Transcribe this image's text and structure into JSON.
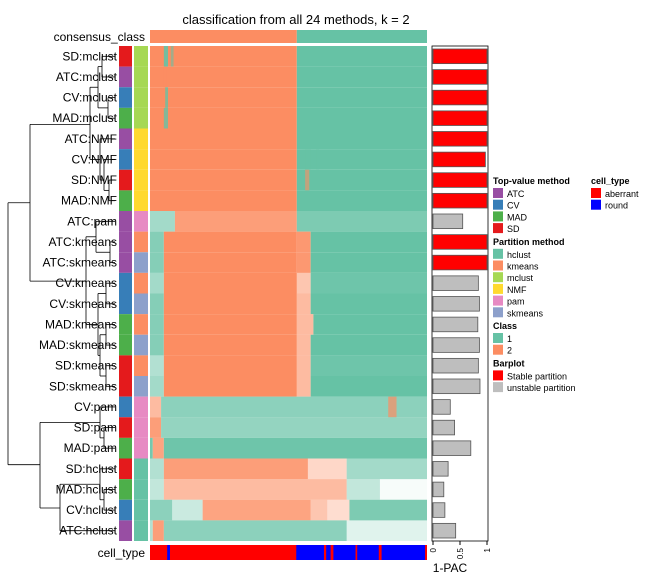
{
  "chart_data": {
    "type": "heatmap",
    "title": "classification from all 24 methods, k = 2",
    "top_annotation_label": "consensus_class",
    "bottom_annotation_label": "cell_type",
    "barplot_label": "1-PAC",
    "barplot_ticks": [
      "0",
      "0.5",
      "1"
    ],
    "barplot_range": [
      0,
      1
    ],
    "column_grid": 100,
    "consensus_class": [
      {
        "from": 0,
        "to": 53,
        "class": 2
      },
      {
        "from": 53,
        "to": 100,
        "class": 1
      }
    ],
    "cell_type": [
      {
        "from": 0,
        "to": 100,
        "type": "aberrant"
      },
      {
        "from": 6.2,
        "to": 7.2,
        "type": "round"
      },
      {
        "from": 52.8,
        "to": 100,
        "type": "round"
      },
      {
        "from": 62.8,
        "to": 63.6,
        "type": "aberrant"
      },
      {
        "from": 65.2,
        "to": 66.2,
        "type": "aberrant"
      },
      {
        "from": 74.2,
        "to": 74.8,
        "type": "aberrant"
      },
      {
        "from": 82.6,
        "to": 83.6,
        "type": "aberrant"
      },
      {
        "from": 99.3,
        "to": 100,
        "type": "aberrant"
      }
    ],
    "rows": [
      {
        "label": "SD:mclust",
        "top": "SD",
        "method": "mclust",
        "pac1": 1.0,
        "stable": true,
        "seg": [
          [
            0,
            53,
            2,
            1
          ],
          [
            5,
            6.5,
            1,
            0.9
          ],
          [
            7.5,
            8.5,
            1,
            0.6
          ],
          [
            53,
            100,
            1,
            1
          ]
        ]
      },
      {
        "label": "ATC:mclust",
        "top": "ATC",
        "method": "mclust",
        "pac1": 1.0,
        "stable": true,
        "seg": [
          [
            0,
            53,
            2,
            1
          ],
          [
            5,
            6,
            2,
            0.5
          ],
          [
            53,
            100,
            1,
            1
          ]
        ]
      },
      {
        "label": "CV:mclust",
        "top": "CV",
        "method": "mclust",
        "pac1": 1.0,
        "stable": true,
        "seg": [
          [
            0,
            53,
            2,
            1
          ],
          [
            5.5,
            6.5,
            1,
            0.8
          ],
          [
            53,
            100,
            1,
            1
          ]
        ]
      },
      {
        "label": "MAD:mclust",
        "top": "MAD",
        "method": "mclust",
        "pac1": 1.0,
        "stable": true,
        "seg": [
          [
            0,
            53,
            2,
            1
          ],
          [
            5,
            6.5,
            1,
            0.8
          ],
          [
            53,
            100,
            1,
            1
          ]
        ]
      },
      {
        "label": "ATC:NMF",
        "top": "ATC",
        "method": "NMF",
        "pac1": 1.0,
        "stable": true,
        "seg": [
          [
            0,
            53,
            2,
            1
          ],
          [
            53,
            100,
            1,
            1
          ],
          [
            55,
            56,
            1,
            0.3
          ]
        ]
      },
      {
        "label": "CV:NMF",
        "top": "CV",
        "method": "NMF",
        "pac1": 0.97,
        "stable": true,
        "seg": [
          [
            0,
            53,
            2,
            1
          ],
          [
            53,
            100,
            1,
            1
          ],
          [
            56,
            58,
            1,
            0.4
          ],
          [
            60,
            61,
            1,
            0.4
          ]
        ]
      },
      {
        "label": "SD:NMF",
        "top": "SD",
        "method": "NMF",
        "pac1": 1.0,
        "stable": true,
        "seg": [
          [
            0,
            53,
            2,
            1
          ],
          [
            53,
            100,
            1,
            1
          ],
          [
            56,
            57.5,
            2,
            0.6
          ]
        ]
      },
      {
        "label": "MAD:NMF",
        "top": "MAD",
        "method": "NMF",
        "pac1": 1.0,
        "stable": true,
        "seg": [
          [
            0,
            53,
            2,
            1
          ],
          [
            53,
            100,
            1,
            1
          ]
        ]
      },
      {
        "label": "ATC:pam",
        "top": "ATC",
        "method": "pam",
        "pac1": 0.55,
        "stable": false,
        "seg": [
          [
            0,
            9,
            1,
            0.6
          ],
          [
            9,
            53,
            2,
            0.85
          ],
          [
            53,
            100,
            1,
            0.85
          ]
        ]
      },
      {
        "label": "ATC:kmeans",
        "top": "ATC",
        "method": "kmeans",
        "pac1": 1.0,
        "stable": true,
        "seg": [
          [
            0,
            5,
            1,
            0.8
          ],
          [
            5,
            53,
            2,
            1
          ],
          [
            53,
            58,
            2,
            0.9
          ],
          [
            58,
            100,
            1,
            1
          ]
        ]
      },
      {
        "label": "ATC:skmeans",
        "top": "ATC",
        "method": "skmeans",
        "pac1": 1.0,
        "stable": true,
        "seg": [
          [
            0,
            5,
            1,
            0.8
          ],
          [
            5,
            53,
            2,
            1
          ],
          [
            53,
            58,
            2,
            0.9
          ],
          [
            58,
            100,
            1,
            1
          ]
        ]
      },
      {
        "label": "CV:kmeans",
        "top": "CV",
        "method": "kmeans",
        "pac1": 0.84,
        "stable": false,
        "seg": [
          [
            0,
            5,
            1,
            0.6
          ],
          [
            5,
            53,
            2,
            1
          ],
          [
            53,
            58,
            2,
            0.5
          ],
          [
            58,
            100,
            1,
            0.95
          ]
        ]
      },
      {
        "label": "CV:skmeans",
        "top": "CV",
        "method": "skmeans",
        "pac1": 0.86,
        "stable": false,
        "seg": [
          [
            0,
            5,
            1,
            0.8
          ],
          [
            5,
            53,
            2,
            1
          ],
          [
            53,
            58,
            2,
            0.6
          ],
          [
            58,
            100,
            1,
            1
          ]
        ]
      },
      {
        "label": "MAD:kmeans",
        "top": "MAD",
        "method": "kmeans",
        "pac1": 0.83,
        "stable": false,
        "seg": [
          [
            0,
            5,
            1,
            0.8
          ],
          [
            5,
            53,
            2,
            1
          ],
          [
            53,
            59,
            2,
            0.6
          ],
          [
            59,
            100,
            1,
            1
          ]
        ]
      },
      {
        "label": "MAD:skmeans",
        "top": "MAD",
        "method": "skmeans",
        "pac1": 0.86,
        "stable": false,
        "seg": [
          [
            0,
            5,
            1,
            0.8
          ],
          [
            5,
            53,
            2,
            1
          ],
          [
            53,
            58,
            2,
            0.6
          ],
          [
            58,
            100,
            1,
            1
          ]
        ]
      },
      {
        "label": "SD:kmeans",
        "top": "SD",
        "method": "kmeans",
        "pac1": 0.84,
        "stable": false,
        "seg": [
          [
            0,
            5,
            1,
            0.5
          ],
          [
            5,
            53,
            2,
            1
          ],
          [
            53,
            58,
            2,
            0.6
          ],
          [
            58,
            100,
            1,
            0.95
          ]
        ]
      },
      {
        "label": "SD:skmeans",
        "top": "SD",
        "method": "skmeans",
        "pac1": 0.87,
        "stable": false,
        "seg": [
          [
            0,
            5,
            1,
            0.6
          ],
          [
            5,
            53,
            2,
            1
          ],
          [
            53,
            58,
            2,
            0.6
          ],
          [
            58,
            100,
            1,
            1
          ]
        ]
      },
      {
        "label": "CV:pam",
        "top": "CV",
        "method": "pam",
        "pac1": 0.32,
        "stable": false,
        "seg": [
          [
            0,
            4,
            2,
            0.6
          ],
          [
            4,
            100,
            1,
            0.75
          ],
          [
            86,
            89,
            2,
            0.7
          ]
        ]
      },
      {
        "label": "SD:pam",
        "top": "SD",
        "method": "pam",
        "pac1": 0.4,
        "stable": false,
        "seg": [
          [
            0,
            4,
            2,
            0.85
          ],
          [
            4,
            100,
            1,
            0.7
          ]
        ]
      },
      {
        "label": "MAD:pam",
        "top": "MAD",
        "method": "pam",
        "pac1": 0.7,
        "stable": false,
        "seg": [
          [
            0,
            1,
            1,
            0.9
          ],
          [
            1,
            5,
            2,
            0.8
          ],
          [
            5,
            100,
            1,
            0.95
          ]
        ]
      },
      {
        "label": "SD:hclust",
        "top": "SD",
        "method": "hclust",
        "pac1": 0.28,
        "stable": false,
        "seg": [
          [
            0,
            5,
            1,
            0.5
          ],
          [
            5,
            57,
            2,
            0.85
          ],
          [
            57,
            71,
            2,
            0.35
          ],
          [
            71,
            100,
            1,
            0.6
          ]
        ]
      },
      {
        "label": "MAD:hclust",
        "top": "MAD",
        "method": "hclust",
        "pac1": 0.2,
        "stable": false,
        "seg": [
          [
            0,
            5,
            1,
            0.4
          ],
          [
            5,
            71,
            2,
            0.6
          ],
          [
            71,
            83,
            1,
            0.4
          ],
          [
            83,
            100,
            1,
            0.05
          ]
        ]
      },
      {
        "label": "CV:hclust",
        "top": "CV",
        "method": "hclust",
        "pac1": 0.22,
        "stable": false,
        "seg": [
          [
            0,
            8,
            1,
            0.75
          ],
          [
            8,
            19,
            1,
            0.35
          ],
          [
            19,
            58,
            2,
            0.8
          ],
          [
            58,
            64,
            2,
            0.5
          ],
          [
            64,
            72,
            2,
            0.3
          ],
          [
            72,
            100,
            1,
            0.85
          ]
        ]
      },
      {
        "label": "ATC:hclust",
        "top": "ATC",
        "method": "hclust",
        "pac1": 0.42,
        "stable": false,
        "seg": [
          [
            0,
            1,
            1,
            0.5
          ],
          [
            1,
            5,
            2,
            0.85
          ],
          [
            5,
            71,
            1,
            0.75
          ],
          [
            71,
            100,
            1,
            0.2
          ]
        ]
      }
    ]
  },
  "legend": {
    "top_value": {
      "title": "Top-value method",
      "items": [
        {
          "label": "ATC",
          "color": "#984EA3"
        },
        {
          "label": "CV",
          "color": "#377EB8"
        },
        {
          "label": "MAD",
          "color": "#4DAF4A"
        },
        {
          "label": "SD",
          "color": "#E41A1C"
        }
      ]
    },
    "partition": {
      "title": "Partition method",
      "items": [
        {
          "label": "hclust",
          "color": "#66C2A5"
        },
        {
          "label": "kmeans",
          "color": "#FC8D62"
        },
        {
          "label": "mclust",
          "color": "#A6D854"
        },
        {
          "label": "NMF",
          "color": "#FFD92F"
        },
        {
          "label": "pam",
          "color": "#E78AC3"
        },
        {
          "label": "skmeans",
          "color": "#8DA0CB"
        }
      ]
    },
    "class": {
      "title": "Class",
      "items": [
        {
          "label": "1",
          "color": "#66C2A5"
        },
        {
          "label": "2",
          "color": "#FC8D62"
        }
      ]
    },
    "barplot": {
      "title": "Barplot",
      "items": [
        {
          "label": "Stable partition",
          "color": "#FF0000"
        },
        {
          "label": "unstable partition",
          "color": "#BEBEBE"
        }
      ]
    },
    "cell_type": {
      "title": "cell_type",
      "items": [
        {
          "label": "aberrant",
          "color": "#FF0000"
        },
        {
          "label": "round",
          "color": "#0000FF"
        }
      ]
    }
  }
}
